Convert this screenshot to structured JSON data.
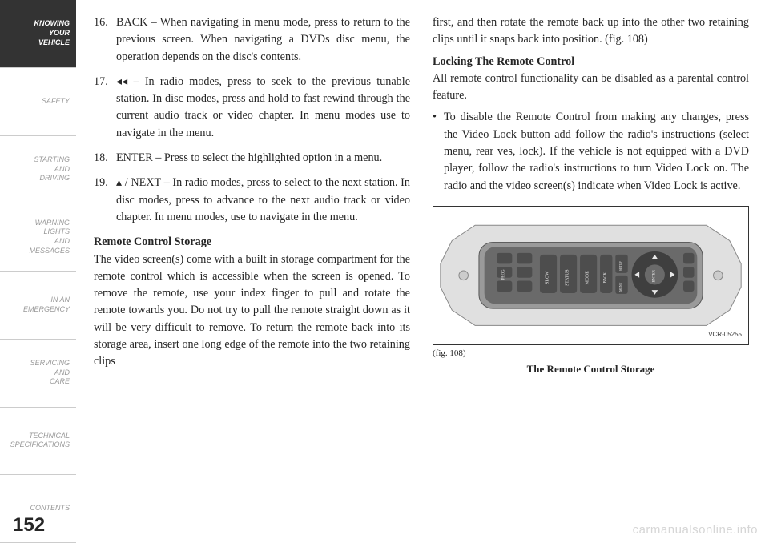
{
  "sidebar": {
    "items": [
      {
        "label": "KNOWING\nYOUR\nVEHICLE",
        "active": true
      },
      {
        "label": "SAFETY",
        "active": false
      },
      {
        "label": "STARTING\nAND\nDRIVING",
        "active": false
      },
      {
        "label": "WARNING\nLIGHTS\nAND\nMESSAGES",
        "active": false
      },
      {
        "label": "IN AN\nEMERGENCY",
        "active": false
      },
      {
        "label": "SERVICING\nAND\nCARE",
        "active": false
      },
      {
        "label": "TECHNICAL\nSPECIFICATIONS",
        "active": false
      },
      {
        "label": "CONTENTS",
        "active": false
      }
    ]
  },
  "left_column": {
    "items": [
      {
        "num": "16.",
        "text": "BACK – When navigating in menu mode, press to return to the previous screen. When navigating a DVDs disc menu, the operation depends on the disc's contents."
      },
      {
        "num": "17.",
        "text": "◂◂ – In radio modes, press to seek to the previous tunable station. In disc modes, press and hold to fast rewind through the current audio track or video chapter. In menu modes use to navigate in the menu."
      },
      {
        "num": "18.",
        "text": "ENTER – Press to select the highlighted option in a menu."
      },
      {
        "num": "19.",
        "text": "▴ / NEXT – In radio modes, press to select to the next station. In disc modes, press to advance to the next audio track or video chapter. In menu modes, use to navigate in the menu."
      }
    ],
    "heading": "Remote Control Storage",
    "para": "The video screen(s) come with a built in storage compartment for the remote control which is accessible when the screen is opened. To remove the remote, use your index finger to pull and rotate the remote towards you. Do not try to pull the remote straight down as it will be very difficult to remove. To return the remote back into its storage area, insert one long edge of the remote into the two retaining clips"
  },
  "right_column": {
    "para1": "first, and then rotate the remote back up into the other two retaining clips until it snaps back into position. (fig. 108)",
    "heading": "Locking The Remote Control",
    "para2": "All remote control functionality can be disabled as a parental control feature.",
    "bullet": "To disable the Remote Control from making any changes, press the Video Lock button add follow the radio's instructions (select menu, rear ves, lock). If the vehicle is not equipped with a DVD player, follow the radio's instructions to turn Video Lock on. The radio and the video screen(s) indicate when Video Lock is active."
  },
  "figure": {
    "code": "VCR-05255",
    "ref": "(fig. 108)",
    "caption": "The Remote Control Storage",
    "remote_buttons": [
      "PROG",
      "SLOW",
      "STATUS",
      "MODE",
      "BACK",
      "SETUP",
      "MENU",
      "ENTER"
    ],
    "colors": {
      "body": "#9a9a9a",
      "panel": "#6a6a6a",
      "button": "#4d4d4d",
      "ring": "#3f3f3f",
      "text": "#e8e8e8"
    }
  },
  "page_number": "152",
  "watermark": "carmanualsonline.info",
  "style": {
    "body_font_size": 14.2,
    "sidebar_font_size": 9,
    "page_number_font_size": 24,
    "text_color": "#262626",
    "sidebar_active_bg": "#333333",
    "sidebar_inactive_color": "#999999"
  }
}
